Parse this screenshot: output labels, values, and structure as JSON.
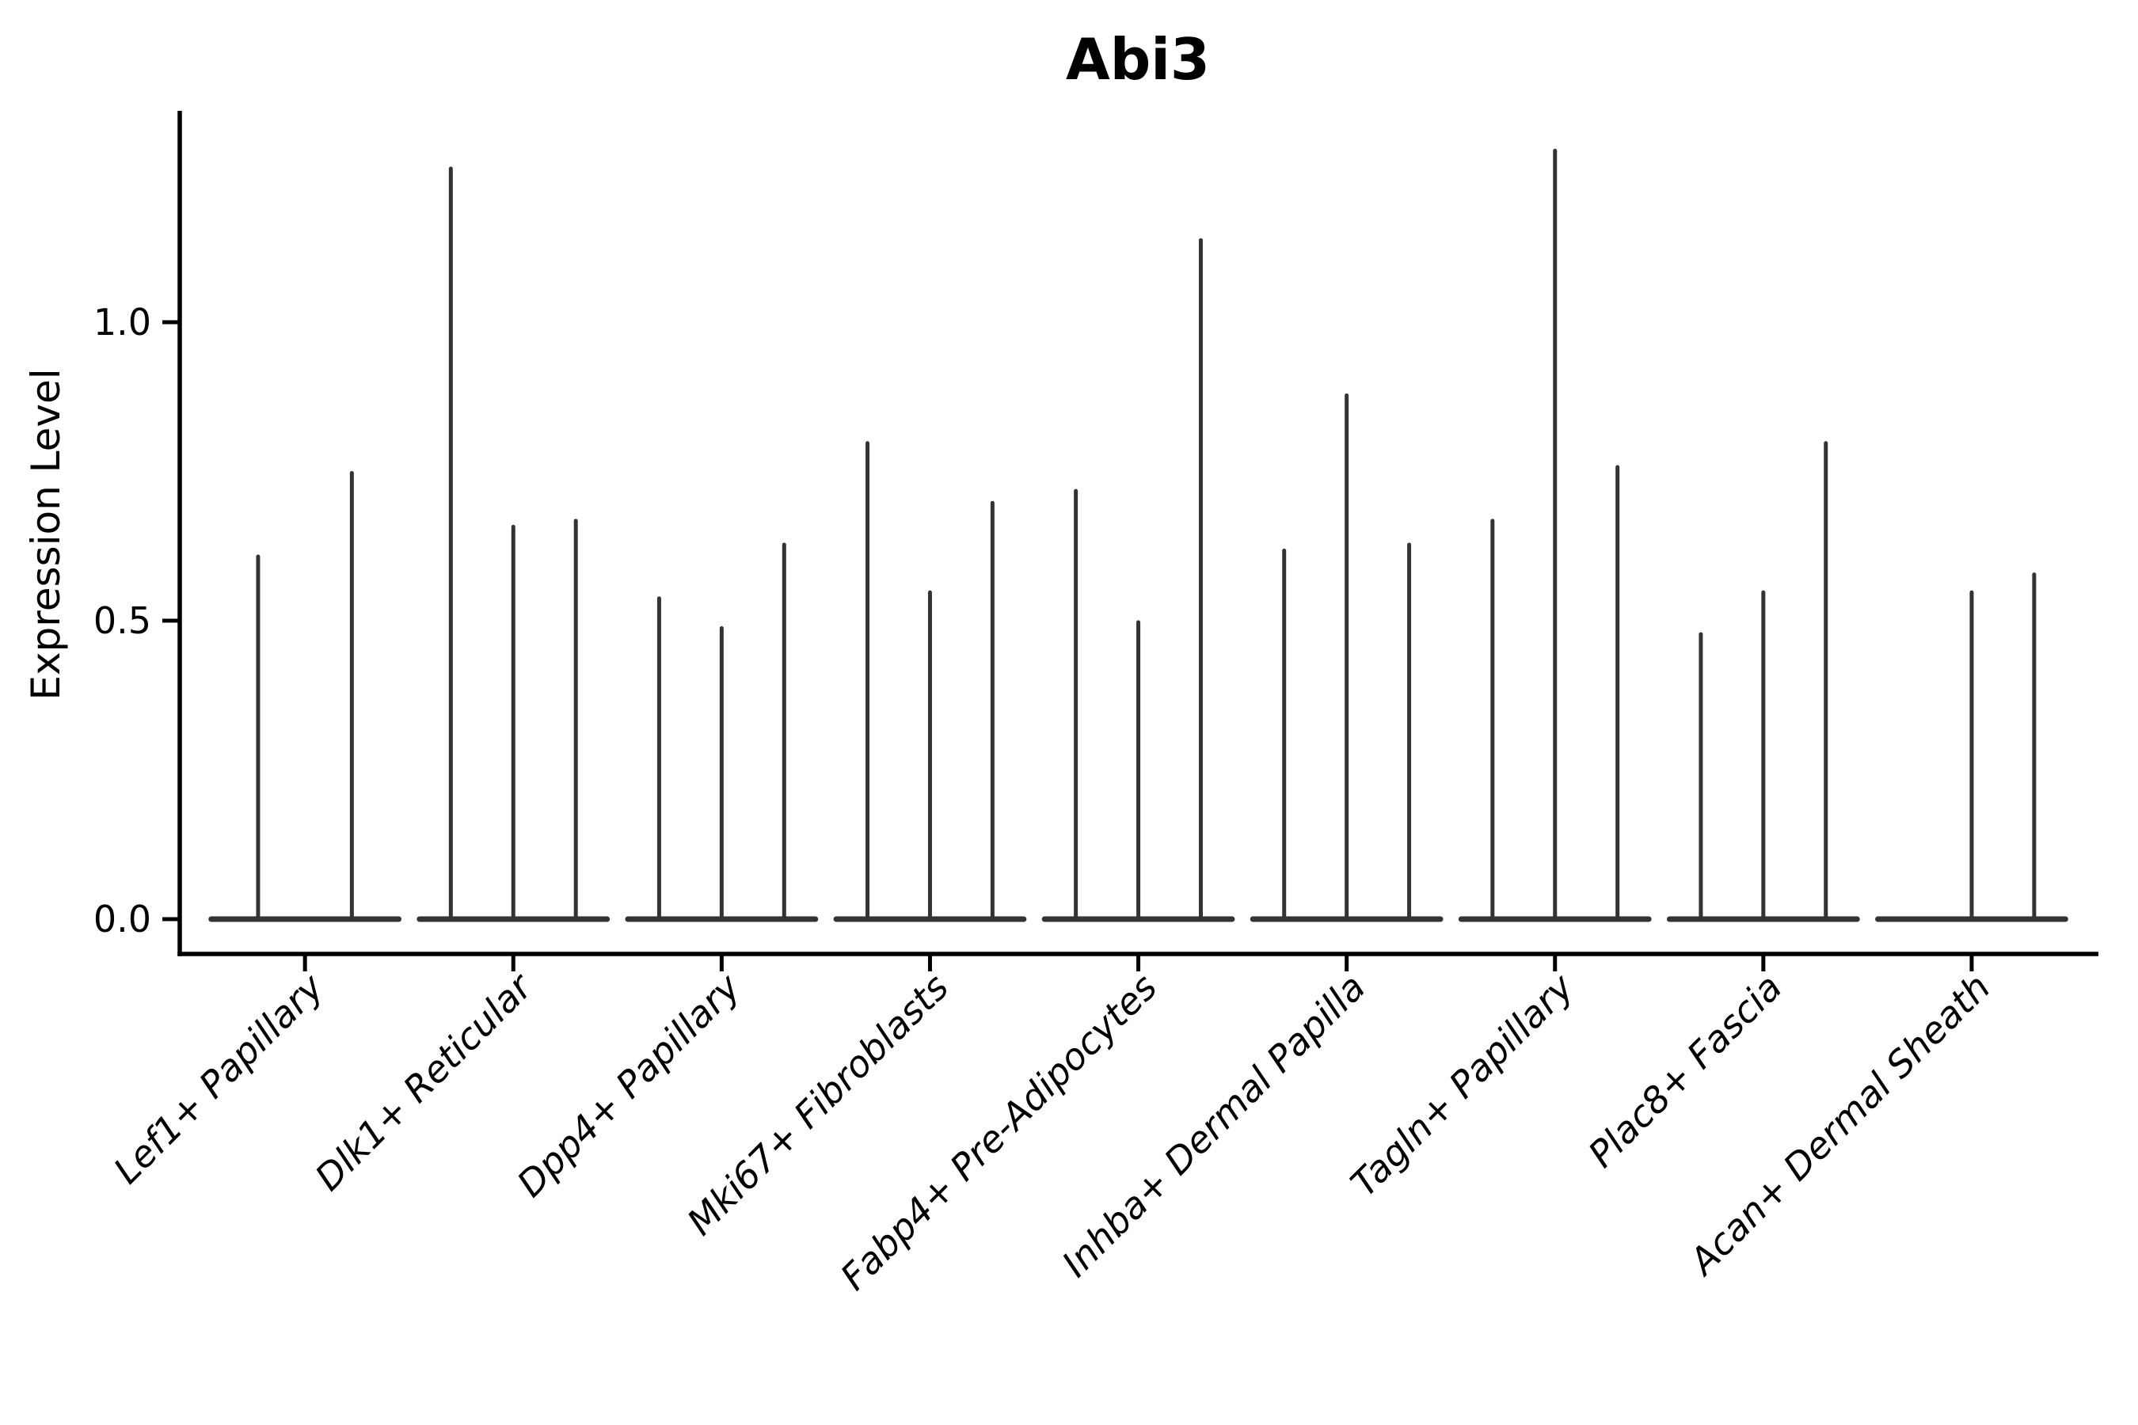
{
  "chart_data": {
    "type": "violin",
    "title": "Abi3",
    "ylabel": "Expression Level",
    "xlabel": "",
    "legend": "none",
    "grid": false,
    "ylim": [
      -0.065,
      1.355
    ],
    "yticks": [
      {
        "label": "0.0",
        "value": 0.0
      },
      {
        "label": "0.5",
        "value": 0.5
      },
      {
        "label": "1.0",
        "value": 1.0
      }
    ],
    "categories": [
      "Lef1+ Papillary",
      "Dlk1+ Reticular",
      "Dpp4+ Papillary",
      "Mki67+ Fibroblasts",
      "Fabp4+ Pre-Adipocytes",
      "Inhba+ Dermal Papilla",
      "Tagln+ Papillary",
      "Plac8+ Fascia",
      "Acan+ Dermal Sheath"
    ],
    "groups": [
      {
        "label": "Lef1+ Papillary",
        "violins": [
          {
            "offset": -0.225,
            "width": 0.45,
            "max": 0.61
          },
          {
            "offset": 0.225,
            "width": 0.45,
            "max": 0.75
          }
        ]
      },
      {
        "label": "Dlk1+ Reticular",
        "violins": [
          {
            "offset": -0.3,
            "width": 0.3,
            "max": 1.26
          },
          {
            "offset": 0,
            "width": 0.3,
            "max": 0.66
          },
          {
            "offset": 0.3,
            "width": 0.3,
            "max": 0.67
          }
        ]
      },
      {
        "label": "Dpp4+ Papillary",
        "violins": [
          {
            "offset": -0.3,
            "width": 0.3,
            "max": 0.54
          },
          {
            "offset": 0,
            "width": 0.3,
            "max": 0.49
          },
          {
            "offset": 0.3,
            "width": 0.3,
            "max": 0.63
          }
        ]
      },
      {
        "label": "Mki67+ Fibroblasts",
        "violins": [
          {
            "offset": -0.3,
            "width": 0.3,
            "max": 0.8
          },
          {
            "offset": 0,
            "width": 0.3,
            "max": 0.55
          },
          {
            "offset": 0.3,
            "width": 0.3,
            "max": 0.7
          }
        ]
      },
      {
        "label": "Fabp4+ Pre-Adipocytes",
        "violins": [
          {
            "offset": -0.3,
            "width": 0.3,
            "max": 0.72
          },
          {
            "offset": 0,
            "width": 0.3,
            "max": 0.5
          },
          {
            "offset": 0.3,
            "width": 0.3,
            "max": 1.14
          }
        ]
      },
      {
        "label": "Inhba+ Dermal Papilla",
        "violins": [
          {
            "offset": -0.3,
            "width": 0.3,
            "max": 0.62
          },
          {
            "offset": 0,
            "width": 0.3,
            "max": 0.88
          },
          {
            "offset": 0.3,
            "width": 0.3,
            "max": 0.63
          }
        ]
      },
      {
        "label": "Tagln+ Papillary",
        "violins": [
          {
            "offset": -0.3,
            "width": 0.3,
            "max": 0.67
          },
          {
            "offset": 0,
            "width": 0.3,
            "max": 1.29
          },
          {
            "offset": 0.3,
            "width": 0.3,
            "max": 0.76
          }
        ]
      },
      {
        "label": "Plac8+ Fascia",
        "violins": [
          {
            "offset": -0.3,
            "width": 0.3,
            "max": 0.48
          },
          {
            "offset": 0,
            "width": 0.3,
            "max": 0.55
          },
          {
            "offset": 0.3,
            "width": 0.3,
            "max": 0.8
          }
        ]
      },
      {
        "label": "Acan+ Dermal Sheath",
        "violins": [
          {
            "offset": -0.3,
            "width": 0.3,
            "max": 0.0
          },
          {
            "offset": 0,
            "width": 0.3,
            "max": 0.55
          },
          {
            "offset": 0.3,
            "width": 0.3,
            "max": 0.58
          }
        ]
      }
    ],
    "colors": {
      "violin_stroke": "#333333",
      "axis": "#000000",
      "text": "#000000",
      "background": "#ffffff"
    }
  }
}
